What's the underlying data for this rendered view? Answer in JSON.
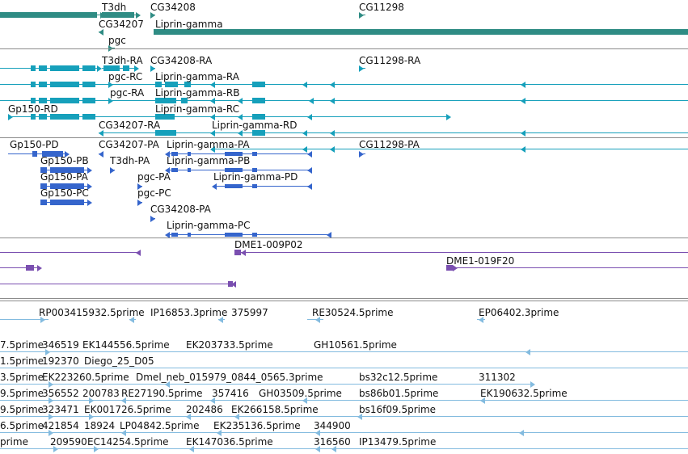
{
  "colors": {
    "gene_dark": "#2f8c84",
    "transcript_a": "#16a0bb",
    "transcript_b": "#3565cc",
    "clone": "#7a4fb0",
    "est": "#83bbdf",
    "separator": "#8c8c8c"
  },
  "genes": [
    {
      "label": "T3dh"
    },
    {
      "label": "CG34208"
    },
    {
      "label": "CG11298"
    },
    {
      "label": "CG34207"
    },
    {
      "label": "Liprin-gamma"
    },
    {
      "label": "pgc"
    }
  ],
  "transcripts_a": [
    {
      "label": "T3dh-RA"
    },
    {
      "label": "CG34208-RA"
    },
    {
      "label": "CG11298-RA"
    },
    {
      "label": "pgc-RC"
    },
    {
      "label": "Liprin-gamma-RA"
    },
    {
      "label": "pgc-RA"
    },
    {
      "label": "Liprin-gamma-RB"
    },
    {
      "label": "Gp150-RD"
    },
    {
      "label": "Liprin-gamma-RC"
    },
    {
      "label": "CG34207-RA"
    },
    {
      "label": "Liprin-gamma-RD"
    }
  ],
  "transcripts_b": [
    {
      "label": "Gp150-PD"
    },
    {
      "label": "CG34207-PA"
    },
    {
      "label": "Liprin-gamma-PA"
    },
    {
      "label": "CG11298-PA"
    },
    {
      "label": "Gp150-PB"
    },
    {
      "label": "T3dh-PA"
    },
    {
      "label": "Liprin-gamma-PB"
    },
    {
      "label": "Gp150-PA"
    },
    {
      "label": "pgc-PA"
    },
    {
      "label": "Liprin-gamma-PD"
    },
    {
      "label": "Gp150-PC"
    },
    {
      "label": "pgc-PC"
    },
    {
      "label": "CG34208-PA"
    },
    {
      "label": "Liprin-gamma-PC"
    }
  ],
  "clones": [
    {
      "label": "DME1-009P02"
    },
    {
      "label": "DME1-019F20"
    }
  ],
  "ests": [
    {
      "label": "RP003415932.5prime"
    },
    {
      "label": "IP16853.3prime"
    },
    {
      "label": "375997"
    },
    {
      "label": "RE30524.5prime"
    },
    {
      "label": "EP06402.3prime"
    },
    {
      "label": "7.5prime"
    },
    {
      "label": "346519"
    },
    {
      "label": "EK144556.5prime"
    },
    {
      "label": "EK203733.5prime"
    },
    {
      "label": "GH10561.5prime"
    },
    {
      "label": "1.5prime"
    },
    {
      "label": "192370"
    },
    {
      "label": "Diego_25_D05"
    },
    {
      "label": "3.5prime"
    },
    {
      "label": "EK223260.5prime"
    },
    {
      "label": "Dmel_neb_015979_0844_0565.3prime"
    },
    {
      "label": "bs32c12.5prime"
    },
    {
      "label": "311302"
    },
    {
      "label": "9.5prime"
    },
    {
      "label": "356552"
    },
    {
      "label": "200783"
    },
    {
      "label": "RE27190.5prime"
    },
    {
      "label": "357416"
    },
    {
      "label": "GH03509.5prime"
    },
    {
      "label": "bs86b01.5prime"
    },
    {
      "label": "EK190632.5prime"
    },
    {
      "label": "9.5prime"
    },
    {
      "label": "323471"
    },
    {
      "label": "EK001726.5prime"
    },
    {
      "label": "202486"
    },
    {
      "label": "EK266158.5prime"
    },
    {
      "label": "bs16f09.5prime"
    },
    {
      "label": "6.5prime"
    },
    {
      "label": "421854"
    },
    {
      "label": "18924"
    },
    {
      "label": "LP04842.5prime"
    },
    {
      "label": "EK235136.5prime"
    },
    {
      "label": "344900"
    },
    {
      "label": "prime"
    },
    {
      "label": "209590"
    },
    {
      "label": "EC14254.5prime"
    },
    {
      "label": "EK147036.5prime"
    },
    {
      "label": "316560"
    },
    {
      "label": "IP13479.5prime"
    }
  ]
}
